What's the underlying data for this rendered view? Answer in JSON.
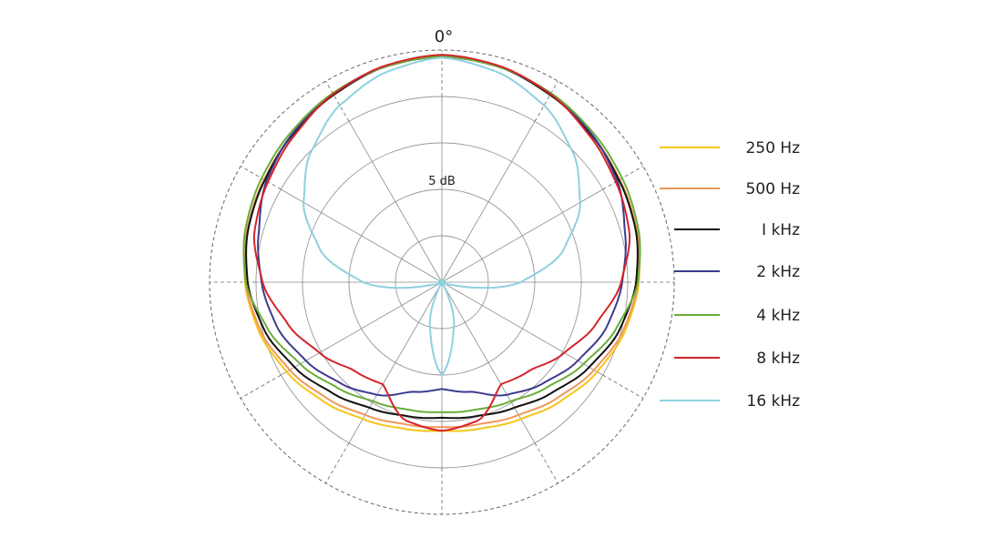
{
  "chart_data": {
    "type": "polar",
    "top_angle_label": "0°",
    "ring_label": "5 dB",
    "ring_count": 5,
    "spoke_step_deg": 30,
    "radial_unit": "dB",
    "radial_range": [
      -25,
      0
    ],
    "angles_deg": [
      0,
      15,
      30,
      45,
      60,
      75,
      90,
      105,
      120,
      135,
      150,
      165,
      180
    ],
    "series": [
      {
        "name": "250 Hz",
        "color": "#F5C518",
        "values": [
          -0.7,
          -1.0,
          -1.7,
          -2.4,
          -2.9,
          -3.3,
          -3.8,
          -4.6,
          -5.7,
          -6.9,
          -8.0,
          -8.7,
          -9.0
        ]
      },
      {
        "name": "500 Hz",
        "color": "#F0975A",
        "values": [
          -0.7,
          -1.0,
          -1.7,
          -2.4,
          -2.9,
          -3.3,
          -3.9,
          -4.8,
          -6.1,
          -7.4,
          -8.5,
          -9.2,
          -9.4
        ]
      },
      {
        "name": "1 kHz",
        "color": "#111111",
        "values": [
          -0.7,
          -1.0,
          -1.7,
          -2.4,
          -3.0,
          -3.4,
          -4.1,
          -5.2,
          -6.7,
          -8.2,
          -9.4,
          -10.1,
          -10.4
        ]
      },
      {
        "name": "2 kHz",
        "color": "#3B3B8F",
        "values": [
          -0.7,
          -1.0,
          -1.6,
          -2.3,
          -3.2,
          -4.6,
          -5.6,
          -6.6,
          -8.1,
          -9.6,
          -11.0,
          -12.8,
          -13.5
        ]
      },
      {
        "name": "4 kHz",
        "color": "#6AAE3A",
        "values": [
          -0.7,
          -1.0,
          -1.5,
          -2.1,
          -2.6,
          -3.1,
          -3.9,
          -5.6,
          -7.4,
          -9.0,
          -10.2,
          -10.8,
          -11.0
        ]
      },
      {
        "name": "8 kHz",
        "color": "#D42428",
        "values": [
          -0.5,
          -0.9,
          -1.6,
          -2.6,
          -3.4,
          -4.1,
          -5.7,
          -7.8,
          -9.8,
          -11.6,
          -12.3,
          -9.6,
          -9.0
        ]
      },
      {
        "name": "16 kHz",
        "color": "#8FD0DF",
        "values": [
          -0.8,
          -1.6,
          -3.0,
          -5.1,
          -7.8,
          -11.4,
          -16.5,
          -24.0,
          -25.0,
          -25.0,
          -25.0,
          -20.0,
          -15.0
        ]
      }
    ],
    "legend_position": "right",
    "grid": true
  },
  "legend": {
    "items": [
      {
        "label": "250 Hz",
        "color": "#F5C518"
      },
      {
        "label": "500 Hz",
        "color": "#F0975A"
      },
      {
        "label": "I kHz",
        "color": "#111111"
      },
      {
        "label": "2 kHz",
        "color": "#3B3B8F"
      },
      {
        "label": "4 kHz",
        "color": "#6AAE3A"
      },
      {
        "label": "8 kHz",
        "color": "#D42428"
      },
      {
        "label": "16 kHz",
        "color": "#8FD0DF"
      }
    ]
  }
}
